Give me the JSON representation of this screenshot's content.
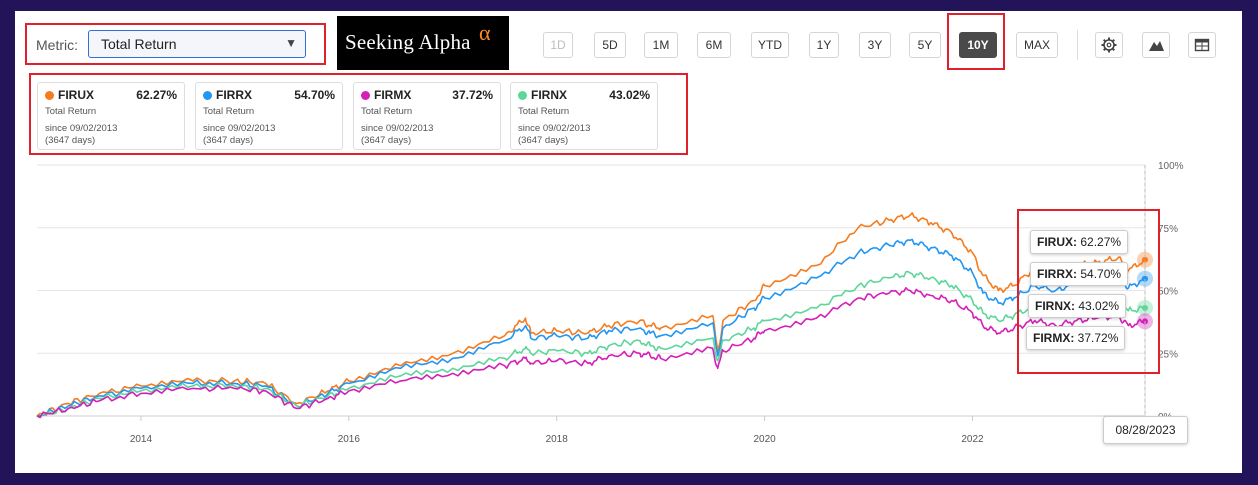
{
  "metric": {
    "label": "Metric:",
    "value": "Total Return"
  },
  "logo": {
    "text": "Seeking Alpha",
    "symbol": "α"
  },
  "range_buttons": [
    {
      "label": "1D",
      "state": "disabled"
    },
    {
      "label": "5D",
      "state": "normal"
    },
    {
      "label": "1M",
      "state": "normal"
    },
    {
      "label": "6M",
      "state": "normal"
    },
    {
      "label": "YTD",
      "state": "normal"
    },
    {
      "label": "1Y",
      "state": "normal"
    },
    {
      "label": "3Y",
      "state": "normal"
    },
    {
      "label": "5Y",
      "state": "normal"
    },
    {
      "label": "10Y",
      "state": "active"
    },
    {
      "label": "MAX",
      "state": "normal"
    }
  ],
  "tool_icons": [
    "gear-icon",
    "mountain-chart-icon",
    "table-icon"
  ],
  "cards": [
    {
      "ticker": "FIRUX",
      "value": "62.27%",
      "metric": "Total Return",
      "since": "since 09/02/2013",
      "days": "(3647 days)",
      "color": "#f57c1f"
    },
    {
      "ticker": "FIRRX",
      "value": "54.70%",
      "metric": "Total Return",
      "since": "since 09/02/2013",
      "days": "(3647 days)",
      "color": "#2196f3"
    },
    {
      "ticker": "FIRMX",
      "value": "37.72%",
      "metric": "Total Return",
      "since": "since 09/02/2013",
      "days": "(3647 days)",
      "color": "#d41fb8"
    },
    {
      "ticker": "FIRNX",
      "value": "43.02%",
      "metric": "Total Return",
      "since": "since 09/02/2013",
      "days": "(3647 days)",
      "color": "#5dd69a"
    }
  ],
  "tooltips": [
    {
      "ticker": "FIRUX:",
      "value": "62.27%"
    },
    {
      "ticker": "FIRRX:",
      "value": "54.70%"
    },
    {
      "ticker": "FIRNX:",
      "value": "43.02%"
    },
    {
      "ticker": "FIRMX:",
      "value": "37.72%"
    }
  ],
  "date_badge": "08/28/2023",
  "chart_data": {
    "type": "line",
    "x_ticks": [
      "2014",
      "2016",
      "2018",
      "2020",
      "2022"
    ],
    "y_ticks": [
      "0%",
      "25%",
      "50%",
      "75%",
      "100%"
    ],
    "ylim": [
      0,
      100
    ],
    "xlim": [
      2013.0,
      2023.66
    ],
    "grid": true,
    "legend": "top",
    "series": [
      {
        "name": "FIRUX",
        "color": "#f57c1f",
        "points": [
          [
            2013.0,
            0
          ],
          [
            2013.3,
            5
          ],
          [
            2013.6,
            9
          ],
          [
            2014.0,
            12
          ],
          [
            2014.5,
            14
          ],
          [
            2014.9,
            14
          ],
          [
            2015.2,
            13
          ],
          [
            2015.5,
            5
          ],
          [
            2015.8,
            10
          ],
          [
            2016.0,
            14
          ],
          [
            2016.5,
            20
          ],
          [
            2017.0,
            25
          ],
          [
            2017.5,
            32
          ],
          [
            2017.7,
            39
          ],
          [
            2017.75,
            33
          ],
          [
            2018.0,
            34
          ],
          [
            2018.3,
            33
          ],
          [
            2018.5,
            36
          ],
          [
            2018.8,
            38
          ],
          [
            2018.9,
            36
          ],
          [
            2019.0,
            35
          ],
          [
            2019.5,
            40
          ],
          [
            2019.55,
            25
          ],
          [
            2019.6,
            38
          ],
          [
            2019.9,
            46
          ],
          [
            2020.0,
            52
          ],
          [
            2020.5,
            60
          ],
          [
            2020.9,
            75
          ],
          [
            2021.2,
            78
          ],
          [
            2021.4,
            80
          ],
          [
            2021.6,
            77
          ],
          [
            2021.8,
            73
          ],
          [
            2022.0,
            65
          ],
          [
            2022.1,
            56
          ],
          [
            2022.25,
            50
          ],
          [
            2022.4,
            52
          ],
          [
            2022.6,
            59
          ],
          [
            2022.8,
            56
          ],
          [
            2023.0,
            60
          ],
          [
            2023.2,
            61
          ],
          [
            2023.4,
            63
          ],
          [
            2023.5,
            58
          ],
          [
            2023.66,
            62.27
          ]
        ]
      },
      {
        "name": "FIRRX",
        "color": "#2196f3",
        "points": [
          [
            2013.0,
            0
          ],
          [
            2013.3,
            4
          ],
          [
            2013.6,
            8
          ],
          [
            2014.0,
            11
          ],
          [
            2014.5,
            13
          ],
          [
            2014.9,
            13
          ],
          [
            2015.2,
            12
          ],
          [
            2015.5,
            4
          ],
          [
            2015.8,
            9
          ],
          [
            2016.0,
            13
          ],
          [
            2016.5,
            19
          ],
          [
            2017.0,
            23
          ],
          [
            2017.5,
            30
          ],
          [
            2017.7,
            36
          ],
          [
            2017.75,
            31
          ],
          [
            2018.0,
            32
          ],
          [
            2018.3,
            31
          ],
          [
            2018.5,
            34
          ],
          [
            2018.8,
            35
          ],
          [
            2018.9,
            33
          ],
          [
            2019.0,
            32
          ],
          [
            2019.5,
            37
          ],
          [
            2019.55,
            24
          ],
          [
            2019.6,
            35
          ],
          [
            2019.9,
            43
          ],
          [
            2020.0,
            47
          ],
          [
            2020.5,
            55
          ],
          [
            2020.9,
            65
          ],
          [
            2021.2,
            68
          ],
          [
            2021.4,
            70
          ],
          [
            2021.6,
            67
          ],
          [
            2021.8,
            64
          ],
          [
            2022.0,
            57
          ],
          [
            2022.1,
            49
          ],
          [
            2022.25,
            45
          ],
          [
            2022.4,
            47
          ],
          [
            2022.6,
            52
          ],
          [
            2022.8,
            50
          ],
          [
            2023.0,
            53
          ],
          [
            2023.2,
            54
          ],
          [
            2023.4,
            56
          ],
          [
            2023.5,
            51
          ],
          [
            2023.66,
            54.7
          ]
        ]
      },
      {
        "name": "FIRNX",
        "color": "#5dd69a",
        "points": [
          [
            2013.0,
            0
          ],
          [
            2013.3,
            3
          ],
          [
            2013.6,
            7
          ],
          [
            2014.0,
            10
          ],
          [
            2014.5,
            12
          ],
          [
            2014.9,
            12
          ],
          [
            2015.2,
            11
          ],
          [
            2015.5,
            4
          ],
          [
            2015.8,
            8
          ],
          [
            2016.0,
            11
          ],
          [
            2016.5,
            16
          ],
          [
            2017.0,
            19
          ],
          [
            2017.5,
            23
          ],
          [
            2017.7,
            27
          ],
          [
            2017.75,
            25
          ],
          [
            2018.0,
            26
          ],
          [
            2018.3,
            25
          ],
          [
            2018.5,
            28
          ],
          [
            2018.8,
            30
          ],
          [
            2018.9,
            28
          ],
          [
            2019.0,
            27
          ],
          [
            2019.5,
            31
          ],
          [
            2019.55,
            22
          ],
          [
            2019.6,
            30
          ],
          [
            2019.9,
            35
          ],
          [
            2020.0,
            38
          ],
          [
            2020.5,
            43
          ],
          [
            2020.9,
            52
          ],
          [
            2021.2,
            55
          ],
          [
            2021.4,
            57
          ],
          [
            2021.6,
            55
          ],
          [
            2021.8,
            52
          ],
          [
            2022.0,
            46
          ],
          [
            2022.1,
            41
          ],
          [
            2022.25,
            38
          ],
          [
            2022.4,
            40
          ],
          [
            2022.6,
            44
          ],
          [
            2022.8,
            42
          ],
          [
            2023.0,
            44
          ],
          [
            2023.2,
            45
          ],
          [
            2023.4,
            46
          ],
          [
            2023.5,
            42
          ],
          [
            2023.66,
            43.02
          ]
        ]
      },
      {
        "name": "FIRMX",
        "color": "#d41fb8",
        "points": [
          [
            2013.0,
            0
          ],
          [
            2013.3,
            3
          ],
          [
            2013.6,
            6
          ],
          [
            2014.0,
            9
          ],
          [
            2014.5,
            11
          ],
          [
            2014.9,
            11
          ],
          [
            2015.2,
            10
          ],
          [
            2015.5,
            3
          ],
          [
            2015.8,
            7
          ],
          [
            2016.0,
            10
          ],
          [
            2016.5,
            14
          ],
          [
            2017.0,
            17
          ],
          [
            2017.5,
            20
          ],
          [
            2017.7,
            23
          ],
          [
            2017.75,
            21
          ],
          [
            2018.0,
            22
          ],
          [
            2018.3,
            21
          ],
          [
            2018.5,
            24
          ],
          [
            2018.8,
            25
          ],
          [
            2018.9,
            24
          ],
          [
            2019.0,
            23
          ],
          [
            2019.5,
            27
          ],
          [
            2019.55,
            19
          ],
          [
            2019.6,
            26
          ],
          [
            2019.9,
            31
          ],
          [
            2020.0,
            34
          ],
          [
            2020.5,
            39
          ],
          [
            2020.9,
            47
          ],
          [
            2021.2,
            49
          ],
          [
            2021.4,
            50
          ],
          [
            2021.6,
            48
          ],
          [
            2021.8,
            46
          ],
          [
            2022.0,
            41
          ],
          [
            2022.1,
            36
          ],
          [
            2022.25,
            33
          ],
          [
            2022.4,
            35
          ],
          [
            2022.6,
            38
          ],
          [
            2022.8,
            36
          ],
          [
            2023.0,
            38
          ],
          [
            2023.2,
            39
          ],
          [
            2023.4,
            40
          ],
          [
            2023.5,
            36
          ],
          [
            2023.66,
            37.72
          ]
        ]
      }
    ]
  }
}
